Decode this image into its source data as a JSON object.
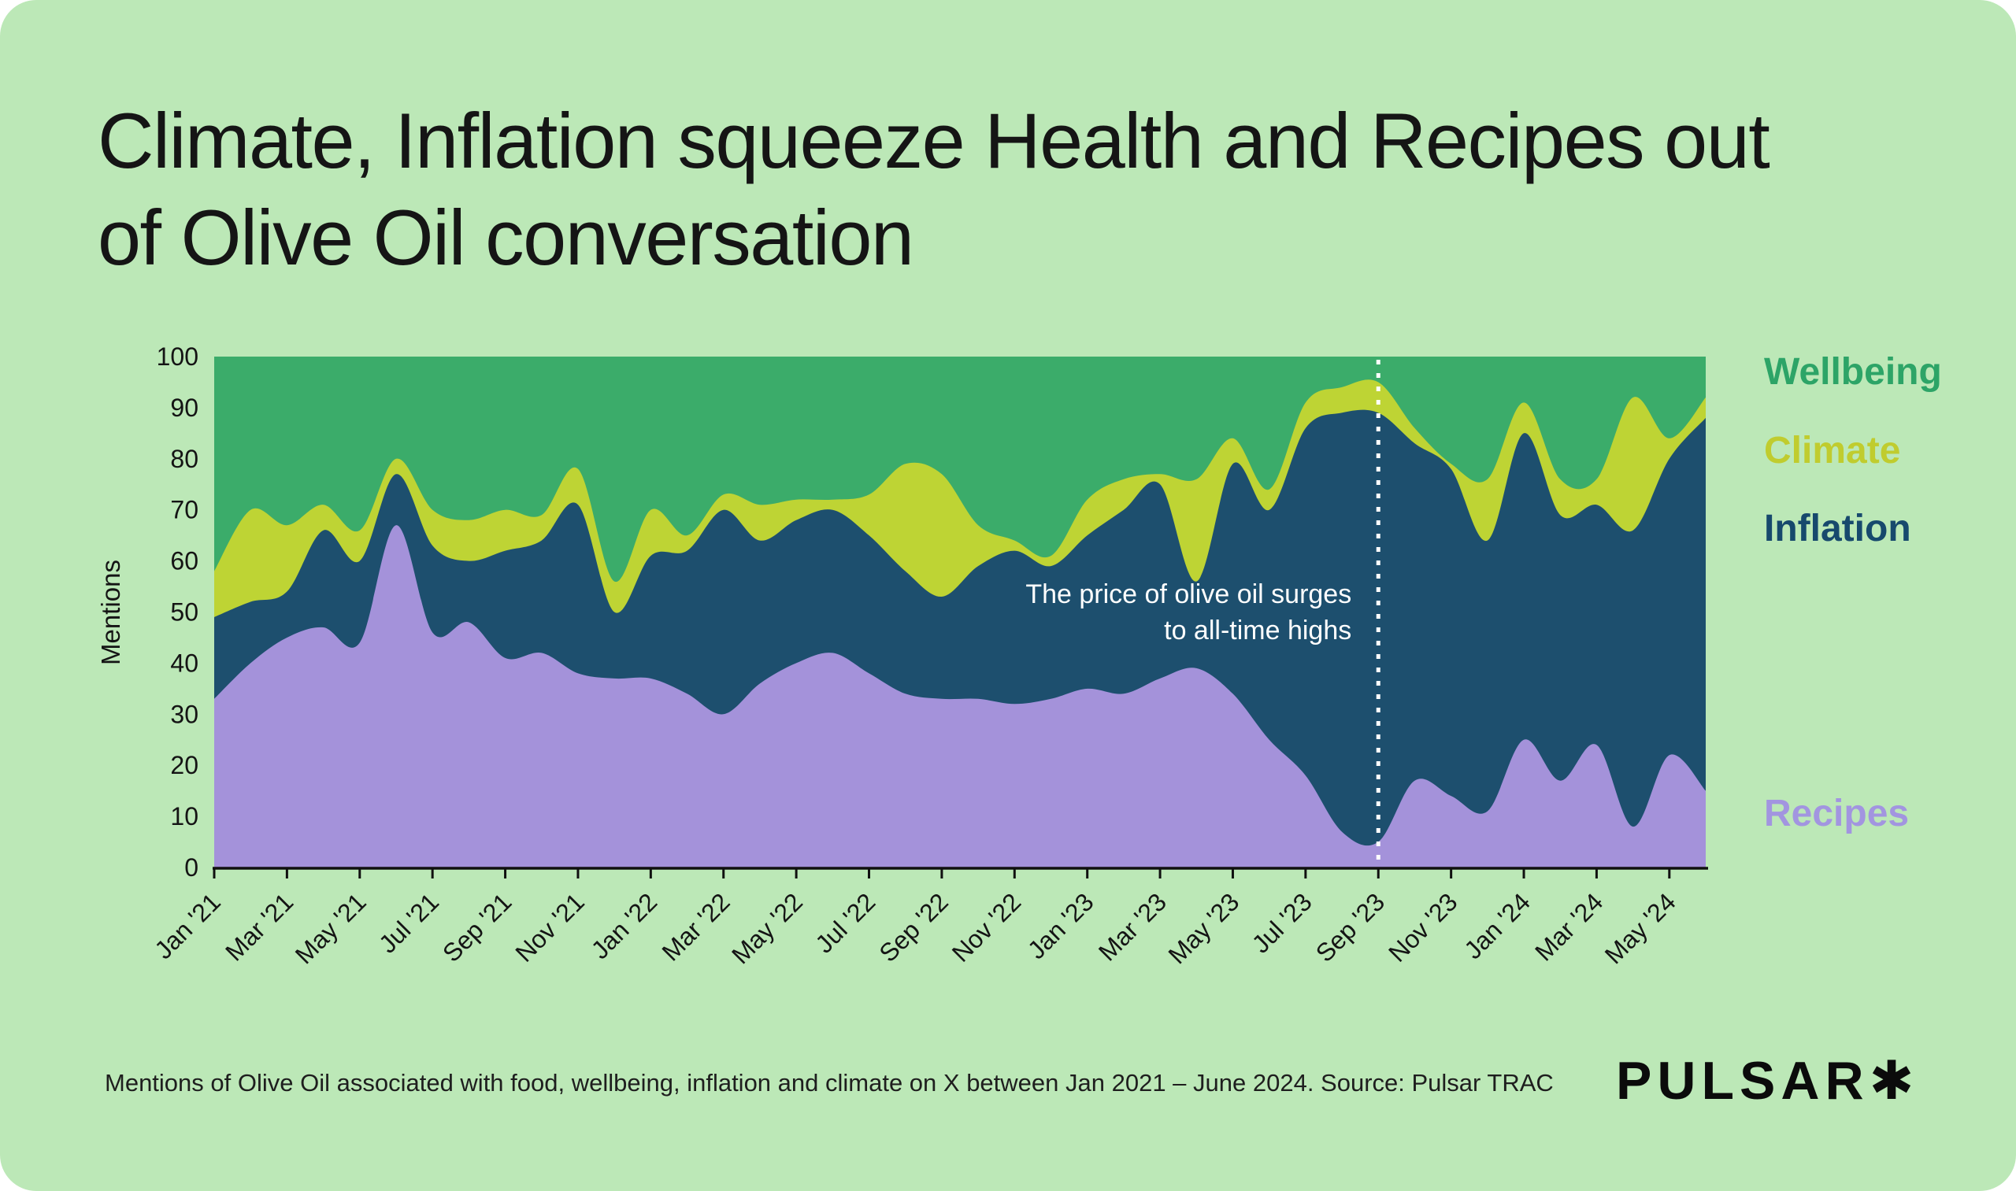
{
  "card": {
    "background": "#bce8b7"
  },
  "title": {
    "line1": "Climate, Inflation squeeze Health and Recipes out",
    "line2": "of Olive Oil conversation"
  },
  "chart": {
    "y_axis_label": "Mentions",
    "annotation": {
      "line1": "The price of olive oil surges",
      "line2": "to all-time highs",
      "anchor_label": "Sep '23",
      "color": "#ffffff"
    },
    "marker_color": "#ffffff",
    "axis_color": "#101010",
    "tick_text_color": "#141414"
  },
  "chart_data": {
    "type": "area",
    "stacked": true,
    "title": "Climate, Inflation squeeze Health and Recipes out of Olive Oil conversation",
    "ylabel": "Mentions",
    "xlabel": "",
    "ylim": [
      0,
      100
    ],
    "grid": false,
    "legend_position": "right",
    "y_ticks": [
      0,
      10,
      20,
      30,
      40,
      50,
      60,
      70,
      80,
      90,
      100
    ],
    "x": [
      "Jan '21",
      "Feb '21",
      "Mar '21",
      "Apr '21",
      "May '21",
      "Jun '21",
      "Jul '21",
      "Aug '21",
      "Sep '21",
      "Oct '21",
      "Nov '21",
      "Dec '21",
      "Jan '22",
      "Feb '22",
      "Mar '22",
      "Apr '22",
      "May '22",
      "Jun '22",
      "Jul '22",
      "Aug '22",
      "Sep '22",
      "Oct '22",
      "Nov '22",
      "Dec '22",
      "Jan '23",
      "Feb '23",
      "Mar '23",
      "Apr '23",
      "May '23",
      "Jun '23",
      "Jul '23",
      "Aug '23",
      "Sep '23",
      "Oct '23",
      "Nov '23",
      "Dec '23",
      "Jan '24",
      "Feb '24",
      "Mar '24",
      "Apr '24",
      "May '24",
      "Jun '24"
    ],
    "x_tick_labels": [
      "Jan '21",
      "Mar '21",
      "May '21",
      "Jul '21",
      "Sep '21",
      "Nov '21",
      "Jan '22",
      "Mar '22",
      "May '22",
      "Jul '22",
      "Sep '22",
      "Nov '22",
      "Jan '23",
      "Mar '23",
      "May '23",
      "Jul '23",
      "Sep '23",
      "Nov '23",
      "Jan '24",
      "Mar '24",
      "May '24"
    ],
    "x_tick_every": 2,
    "annotation": {
      "text": "The price of olive oil surges to all-time highs",
      "x": "Sep '23"
    },
    "series": [
      {
        "name": "Recipes",
        "color": "#a492da",
        "values": [
          33,
          40,
          45,
          47,
          44,
          67,
          46,
          48,
          41,
          42,
          38,
          37,
          37,
          34,
          30,
          36,
          40,
          42,
          38,
          34,
          33,
          33,
          32,
          33,
          35,
          34,
          37,
          39,
          34,
          25,
          18,
          7,
          5,
          17,
          14,
          11,
          25,
          17,
          24,
          8,
          22,
          15
        ]
      },
      {
        "name": "Inflation",
        "color": "#1d4f6e",
        "values": [
          16,
          12,
          9,
          19,
          16,
          10,
          17,
          12,
          21,
          22,
          33,
          13,
          24,
          28,
          40,
          28,
          28,
          28,
          27,
          24,
          20,
          26,
          30,
          26,
          30,
          36,
          38,
          17,
          45,
          45,
          68,
          82,
          84,
          66,
          64,
          53,
          60,
          52,
          47,
          58,
          58,
          73
        ]
      },
      {
        "name": "Climate",
        "color": "#bed434",
        "values": [
          9,
          18,
          13,
          5,
          6,
          3,
          7,
          8,
          8,
          5,
          7,
          6,
          9,
          3,
          3,
          7,
          4,
          2,
          8,
          21,
          24,
          8,
          2,
          2,
          7,
          6,
          2,
          20,
          5,
          4,
          5,
          5,
          6,
          3,
          1,
          12,
          6,
          7,
          5,
          26,
          4,
          4
        ]
      },
      {
        "name": "Wellbeing",
        "color": "#3bac6a",
        "values": [
          42,
          30,
          33,
          29,
          34,
          20,
          30,
          32,
          30,
          31,
          22,
          44,
          30,
          35,
          27,
          29,
          28,
          28,
          27,
          21,
          23,
          33,
          36,
          39,
          28,
          24,
          23,
          24,
          16,
          26,
          9,
          6,
          5,
          14,
          21,
          24,
          9,
          24,
          24,
          8,
          16,
          8
        ]
      }
    ]
  },
  "legend": {
    "items": [
      {
        "label": "Wellbeing",
        "color": "#2da467"
      },
      {
        "label": "Climate",
        "color": "#c0cc2e"
      },
      {
        "label": "Inflation",
        "color": "#17496d"
      },
      {
        "label": "Recipes",
        "color": "#a295e0"
      }
    ]
  },
  "footer": {
    "caption": "Mentions of Olive Oil associated with food, wellbeing, inflation and climate on X between Jan 2021 – June 2024. Source: Pulsar TRAC",
    "logo": "PULSAR✱"
  }
}
